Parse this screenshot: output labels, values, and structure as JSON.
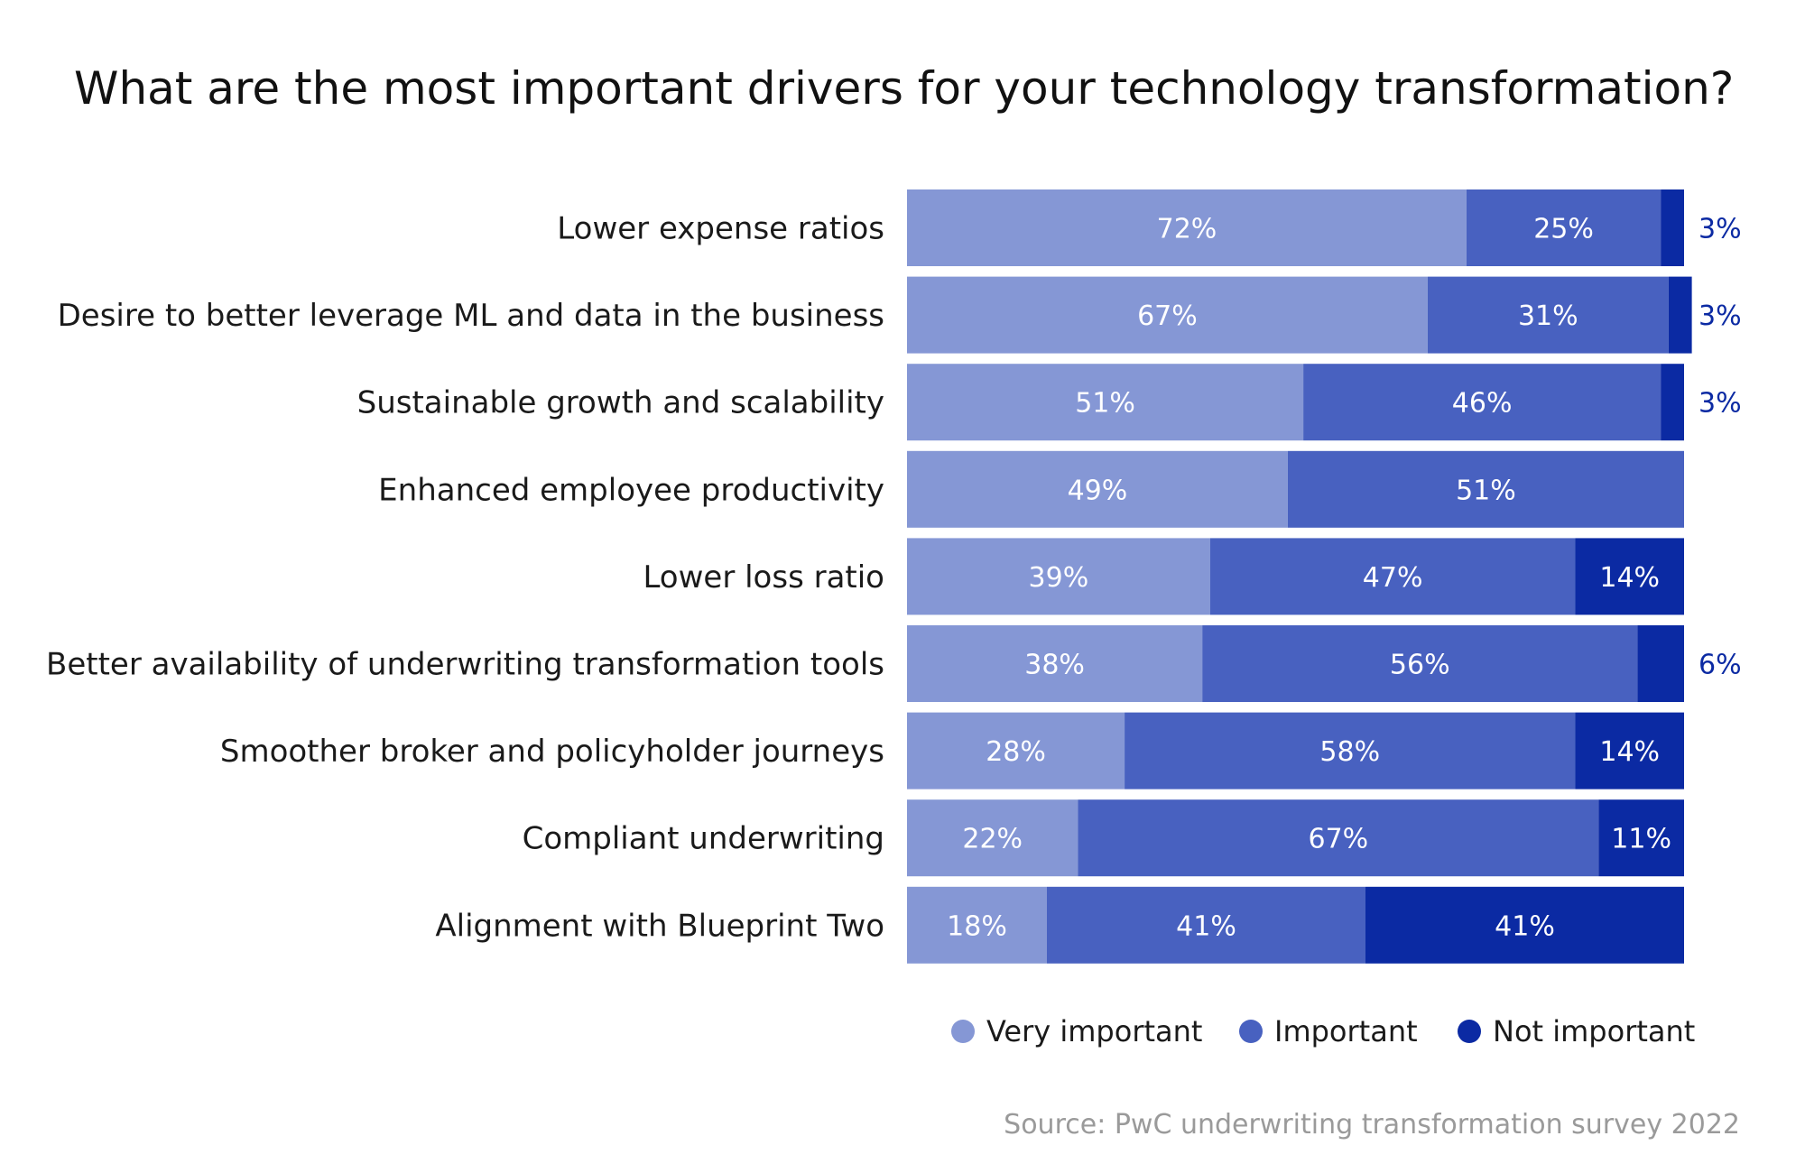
{
  "chart_data": {
    "type": "bar",
    "orientation": "horizontal",
    "stacked": true,
    "title": "What are the most important drivers for your technology transformation?",
    "categories": [
      "Lower expense ratios",
      "Desire to better leverage ML and data in the business",
      "Sustainable growth and scalability",
      "Enhanced employee productivity",
      "Lower loss ratio",
      "Better availability of underwriting transformation tools",
      "Smoother broker and policyholder journeys",
      "Compliant underwriting",
      "Alignment with Blueprint Two"
    ],
    "series": [
      {
        "name": "Very important",
        "color": "#8597d5",
        "values": [
          72,
          67,
          51,
          49,
          39,
          38,
          28,
          22,
          18
        ]
      },
      {
        "name": "Important",
        "color": "#4861c0",
        "values": [
          25,
          31,
          46,
          51,
          47,
          56,
          58,
          67,
          41
        ]
      },
      {
        "name": "Not important",
        "color": "#0b2aa3",
        "values": [
          3,
          3,
          3,
          0,
          14,
          6,
          14,
          11,
          41
        ]
      }
    ],
    "value_suffix": "%",
    "xlim": [
      0,
      100
    ],
    "legend": "bottom",
    "grid": false,
    "source": "Source: PwC underwriting transformation survey 2022"
  }
}
